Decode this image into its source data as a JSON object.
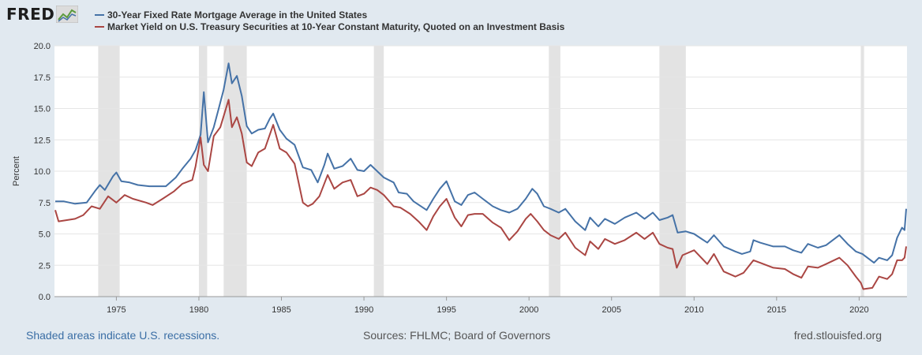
{
  "brand": {
    "logo_text": "FRED"
  },
  "colors": {
    "mortgage": "#4572a7",
    "treasury": "#aa4643",
    "recession": "#e3e3e3",
    "grid": "#e6e6e6",
    "background": "#e1e9f0"
  },
  "footer": {
    "recession_note": "Shaded areas indicate U.S. recessions.",
    "sources": "Sources: FHLMC; Board of Governors",
    "site": "fred.stlouisfed.org"
  },
  "chart_data": {
    "type": "line",
    "title": "",
    "xlabel": "",
    "ylabel": "Percent",
    "xlim": [
      1971.25,
      2022.9
    ],
    "ylim": [
      0,
      20
    ],
    "y_ticks": [
      "0.0",
      "2.5",
      "5.0",
      "7.5",
      "10.0",
      "12.5",
      "15.0",
      "17.5",
      "20.0"
    ],
    "x_ticks": [
      "1975",
      "1980",
      "1985",
      "1990",
      "1995",
      "2000",
      "2005",
      "2010",
      "2015",
      "2020"
    ],
    "recessions": [
      [
        1973.9,
        1975.2
      ],
      [
        1980.0,
        1980.5
      ],
      [
        1981.5,
        1982.9
      ],
      [
        1990.6,
        1991.2
      ],
      [
        2001.2,
        2001.9
      ],
      [
        2007.9,
        2009.5
      ],
      [
        2020.1,
        2020.3
      ]
    ],
    "series": [
      {
        "name": "30-Year Fixed Rate Mortgage Average in the United States",
        "color": "#4572a7",
        "points": [
          [
            1971.3,
            7.6
          ],
          [
            1971.8,
            7.6
          ],
          [
            1972.5,
            7.4
          ],
          [
            1973.2,
            7.5
          ],
          [
            1973.7,
            8.4
          ],
          [
            1974.0,
            8.9
          ],
          [
            1974.3,
            8.5
          ],
          [
            1974.8,
            9.6
          ],
          [
            1975.0,
            9.9
          ],
          [
            1975.3,
            9.2
          ],
          [
            1975.8,
            9.1
          ],
          [
            1976.3,
            8.9
          ],
          [
            1977.0,
            8.8
          ],
          [
            1977.5,
            8.8
          ],
          [
            1978.0,
            8.8
          ],
          [
            1978.6,
            9.5
          ],
          [
            1979.0,
            10.2
          ],
          [
            1979.5,
            11.0
          ],
          [
            1979.8,
            11.7
          ],
          [
            1980.1,
            12.9
          ],
          [
            1980.3,
            16.3
          ],
          [
            1980.55,
            12.3
          ],
          [
            1980.9,
            13.5
          ],
          [
            1981.2,
            15.0
          ],
          [
            1981.5,
            16.5
          ],
          [
            1981.8,
            18.6
          ],
          [
            1982.0,
            17.0
          ],
          [
            1982.3,
            17.6
          ],
          [
            1982.6,
            16.0
          ],
          [
            1982.9,
            13.6
          ],
          [
            1983.2,
            13.0
          ],
          [
            1983.6,
            13.3
          ],
          [
            1984.0,
            13.4
          ],
          [
            1984.3,
            14.2
          ],
          [
            1984.5,
            14.6
          ],
          [
            1984.9,
            13.3
          ],
          [
            1985.3,
            12.6
          ],
          [
            1985.8,
            12.1
          ],
          [
            1986.3,
            10.3
          ],
          [
            1986.8,
            10.1
          ],
          [
            1987.2,
            9.1
          ],
          [
            1987.6,
            10.5
          ],
          [
            1987.8,
            11.4
          ],
          [
            1988.2,
            10.2
          ],
          [
            1988.7,
            10.4
          ],
          [
            1989.2,
            11.0
          ],
          [
            1989.6,
            10.1
          ],
          [
            1990.0,
            10.0
          ],
          [
            1990.4,
            10.5
          ],
          [
            1990.8,
            10.0
          ],
          [
            1991.2,
            9.5
          ],
          [
            1991.8,
            9.1
          ],
          [
            1992.1,
            8.3
          ],
          [
            1992.6,
            8.2
          ],
          [
            1993.0,
            7.6
          ],
          [
            1993.8,
            6.9
          ],
          [
            1994.2,
            7.8
          ],
          [
            1994.6,
            8.6
          ],
          [
            1995.0,
            9.2
          ],
          [
            1995.5,
            7.6
          ],
          [
            1995.9,
            7.3
          ],
          [
            1996.3,
            8.1
          ],
          [
            1996.7,
            8.3
          ],
          [
            1997.2,
            7.8
          ],
          [
            1997.8,
            7.2
          ],
          [
            1998.3,
            6.9
          ],
          [
            1998.8,
            6.7
          ],
          [
            1999.3,
            7.0
          ],
          [
            1999.8,
            7.8
          ],
          [
            2000.2,
            8.6
          ],
          [
            2000.5,
            8.2
          ],
          [
            2000.9,
            7.2
          ],
          [
            2001.3,
            7.0
          ],
          [
            2001.8,
            6.7
          ],
          [
            2002.2,
            7.0
          ],
          [
            2002.8,
            6.0
          ],
          [
            2003.4,
            5.3
          ],
          [
            2003.7,
            6.3
          ],
          [
            2004.2,
            5.6
          ],
          [
            2004.6,
            6.2
          ],
          [
            2005.2,
            5.8
          ],
          [
            2005.8,
            6.3
          ],
          [
            2006.5,
            6.7
          ],
          [
            2007.0,
            6.2
          ],
          [
            2007.5,
            6.7
          ],
          [
            2007.9,
            6.1
          ],
          [
            2008.4,
            6.3
          ],
          [
            2008.7,
            6.5
          ],
          [
            2009.0,
            5.1
          ],
          [
            2009.5,
            5.2
          ],
          [
            2010.0,
            5.0
          ],
          [
            2010.8,
            4.3
          ],
          [
            2011.2,
            4.9
          ],
          [
            2011.8,
            4.0
          ],
          [
            2012.5,
            3.6
          ],
          [
            2012.9,
            3.4
          ],
          [
            2013.4,
            3.6
          ],
          [
            2013.6,
            4.5
          ],
          [
            2014.0,
            4.3
          ],
          [
            2014.8,
            4.0
          ],
          [
            2015.5,
            4.0
          ],
          [
            2016.0,
            3.7
          ],
          [
            2016.5,
            3.5
          ],
          [
            2016.9,
            4.2
          ],
          [
            2017.5,
            3.9
          ],
          [
            2018.0,
            4.1
          ],
          [
            2018.8,
            4.9
          ],
          [
            2019.3,
            4.2
          ],
          [
            2019.8,
            3.6
          ],
          [
            2020.2,
            3.4
          ],
          [
            2020.9,
            2.7
          ],
          [
            2021.2,
            3.1
          ],
          [
            2021.7,
            2.9
          ],
          [
            2022.0,
            3.3
          ],
          [
            2022.3,
            4.7
          ],
          [
            2022.6,
            5.5
          ],
          [
            2022.75,
            5.3
          ],
          [
            2022.85,
            7.0
          ]
        ]
      },
      {
        "name": "Market Yield on U.S. Treasury Securities at 10-Year Constant Maturity, Quoted on an Investment Basis",
        "color": "#aa4643",
        "points": [
          [
            1971.3,
            6.9
          ],
          [
            1971.5,
            6.0
          ],
          [
            1972.0,
            6.1
          ],
          [
            1972.5,
            6.2
          ],
          [
            1973.0,
            6.5
          ],
          [
            1973.5,
            7.2
          ],
          [
            1974.0,
            7.0
          ],
          [
            1974.5,
            8.0
          ],
          [
            1975.0,
            7.5
          ],
          [
            1975.5,
            8.1
          ],
          [
            1976.0,
            7.8
          ],
          [
            1976.8,
            7.5
          ],
          [
            1977.2,
            7.3
          ],
          [
            1977.8,
            7.8
          ],
          [
            1978.5,
            8.4
          ],
          [
            1979.0,
            9.0
          ],
          [
            1979.6,
            9.3
          ],
          [
            1979.8,
            10.4
          ],
          [
            1980.1,
            12.7
          ],
          [
            1980.3,
            10.5
          ],
          [
            1980.55,
            10.0
          ],
          [
            1980.9,
            12.8
          ],
          [
            1981.3,
            13.5
          ],
          [
            1981.8,
            15.7
          ],
          [
            1982.0,
            13.5
          ],
          [
            1982.3,
            14.3
          ],
          [
            1982.6,
            13.0
          ],
          [
            1982.9,
            10.7
          ],
          [
            1983.2,
            10.4
          ],
          [
            1983.6,
            11.5
          ],
          [
            1984.0,
            11.8
          ],
          [
            1984.5,
            13.7
          ],
          [
            1984.9,
            11.8
          ],
          [
            1985.3,
            11.5
          ],
          [
            1985.8,
            10.6
          ],
          [
            1986.3,
            7.5
          ],
          [
            1986.6,
            7.2
          ],
          [
            1986.9,
            7.4
          ],
          [
            1987.3,
            8.0
          ],
          [
            1987.8,
            9.7
          ],
          [
            1988.2,
            8.6
          ],
          [
            1988.7,
            9.1
          ],
          [
            1989.2,
            9.3
          ],
          [
            1989.6,
            8.0
          ],
          [
            1990.0,
            8.2
          ],
          [
            1990.4,
            8.7
          ],
          [
            1990.8,
            8.5
          ],
          [
            1991.2,
            8.1
          ],
          [
            1991.8,
            7.2
          ],
          [
            1992.2,
            7.1
          ],
          [
            1992.8,
            6.6
          ],
          [
            1993.3,
            6.0
          ],
          [
            1993.8,
            5.3
          ],
          [
            1994.2,
            6.4
          ],
          [
            1994.6,
            7.2
          ],
          [
            1995.0,
            7.8
          ],
          [
            1995.5,
            6.3
          ],
          [
            1995.9,
            5.6
          ],
          [
            1996.3,
            6.5
          ],
          [
            1996.7,
            6.6
          ],
          [
            1997.2,
            6.6
          ],
          [
            1997.8,
            5.9
          ],
          [
            1998.3,
            5.5
          ],
          [
            1998.8,
            4.5
          ],
          [
            1999.3,
            5.2
          ],
          [
            1999.8,
            6.2
          ],
          [
            2000.1,
            6.6
          ],
          [
            2000.5,
            6.0
          ],
          [
            2000.9,
            5.3
          ],
          [
            2001.3,
            4.9
          ],
          [
            2001.8,
            4.6
          ],
          [
            2002.2,
            5.1
          ],
          [
            2002.8,
            3.9
          ],
          [
            2003.4,
            3.3
          ],
          [
            2003.7,
            4.4
          ],
          [
            2004.2,
            3.8
          ],
          [
            2004.6,
            4.6
          ],
          [
            2005.2,
            4.2
          ],
          [
            2005.8,
            4.5
          ],
          [
            2006.5,
            5.1
          ],
          [
            2007.0,
            4.6
          ],
          [
            2007.5,
            5.1
          ],
          [
            2007.9,
            4.2
          ],
          [
            2008.4,
            3.9
          ],
          [
            2008.7,
            3.8
          ],
          [
            2008.95,
            2.3
          ],
          [
            2009.3,
            3.3
          ],
          [
            2010.0,
            3.7
          ],
          [
            2010.8,
            2.6
          ],
          [
            2011.2,
            3.4
          ],
          [
            2011.8,
            2.0
          ],
          [
            2012.5,
            1.6
          ],
          [
            2013.0,
            1.9
          ],
          [
            2013.6,
            2.9
          ],
          [
            2014.0,
            2.7
          ],
          [
            2014.8,
            2.3
          ],
          [
            2015.5,
            2.2
          ],
          [
            2016.0,
            1.8
          ],
          [
            2016.5,
            1.5
          ],
          [
            2016.9,
            2.4
          ],
          [
            2017.5,
            2.3
          ],
          [
            2018.0,
            2.6
          ],
          [
            2018.8,
            3.1
          ],
          [
            2019.3,
            2.5
          ],
          [
            2019.8,
            1.6
          ],
          [
            2020.1,
            1.1
          ],
          [
            2020.25,
            0.6
          ],
          [
            2020.8,
            0.7
          ],
          [
            2021.2,
            1.6
          ],
          [
            2021.7,
            1.4
          ],
          [
            2022.0,
            1.8
          ],
          [
            2022.3,
            2.9
          ],
          [
            2022.6,
            2.9
          ],
          [
            2022.75,
            3.1
          ],
          [
            2022.85,
            4.0
          ]
        ]
      }
    ]
  }
}
